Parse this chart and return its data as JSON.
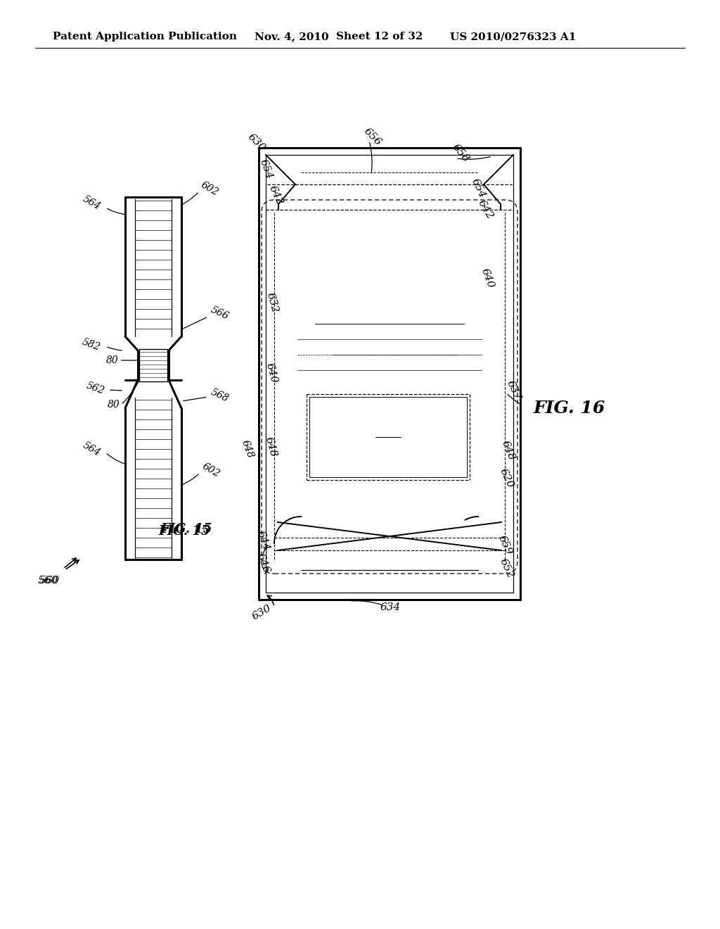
{
  "bg_color": "#ffffff",
  "header_text": "Patent Application Publication",
  "header_date": "Nov. 4, 2010",
  "header_sheet": "Sheet 12 of 32",
  "header_patent": "US 2010/0276323 A1",
  "fig15_label": "FIG. 15",
  "fig16_label": "FIG. 16",
  "line_color": "#000000",
  "lw": 1.4,
  "hlw": 2.2
}
